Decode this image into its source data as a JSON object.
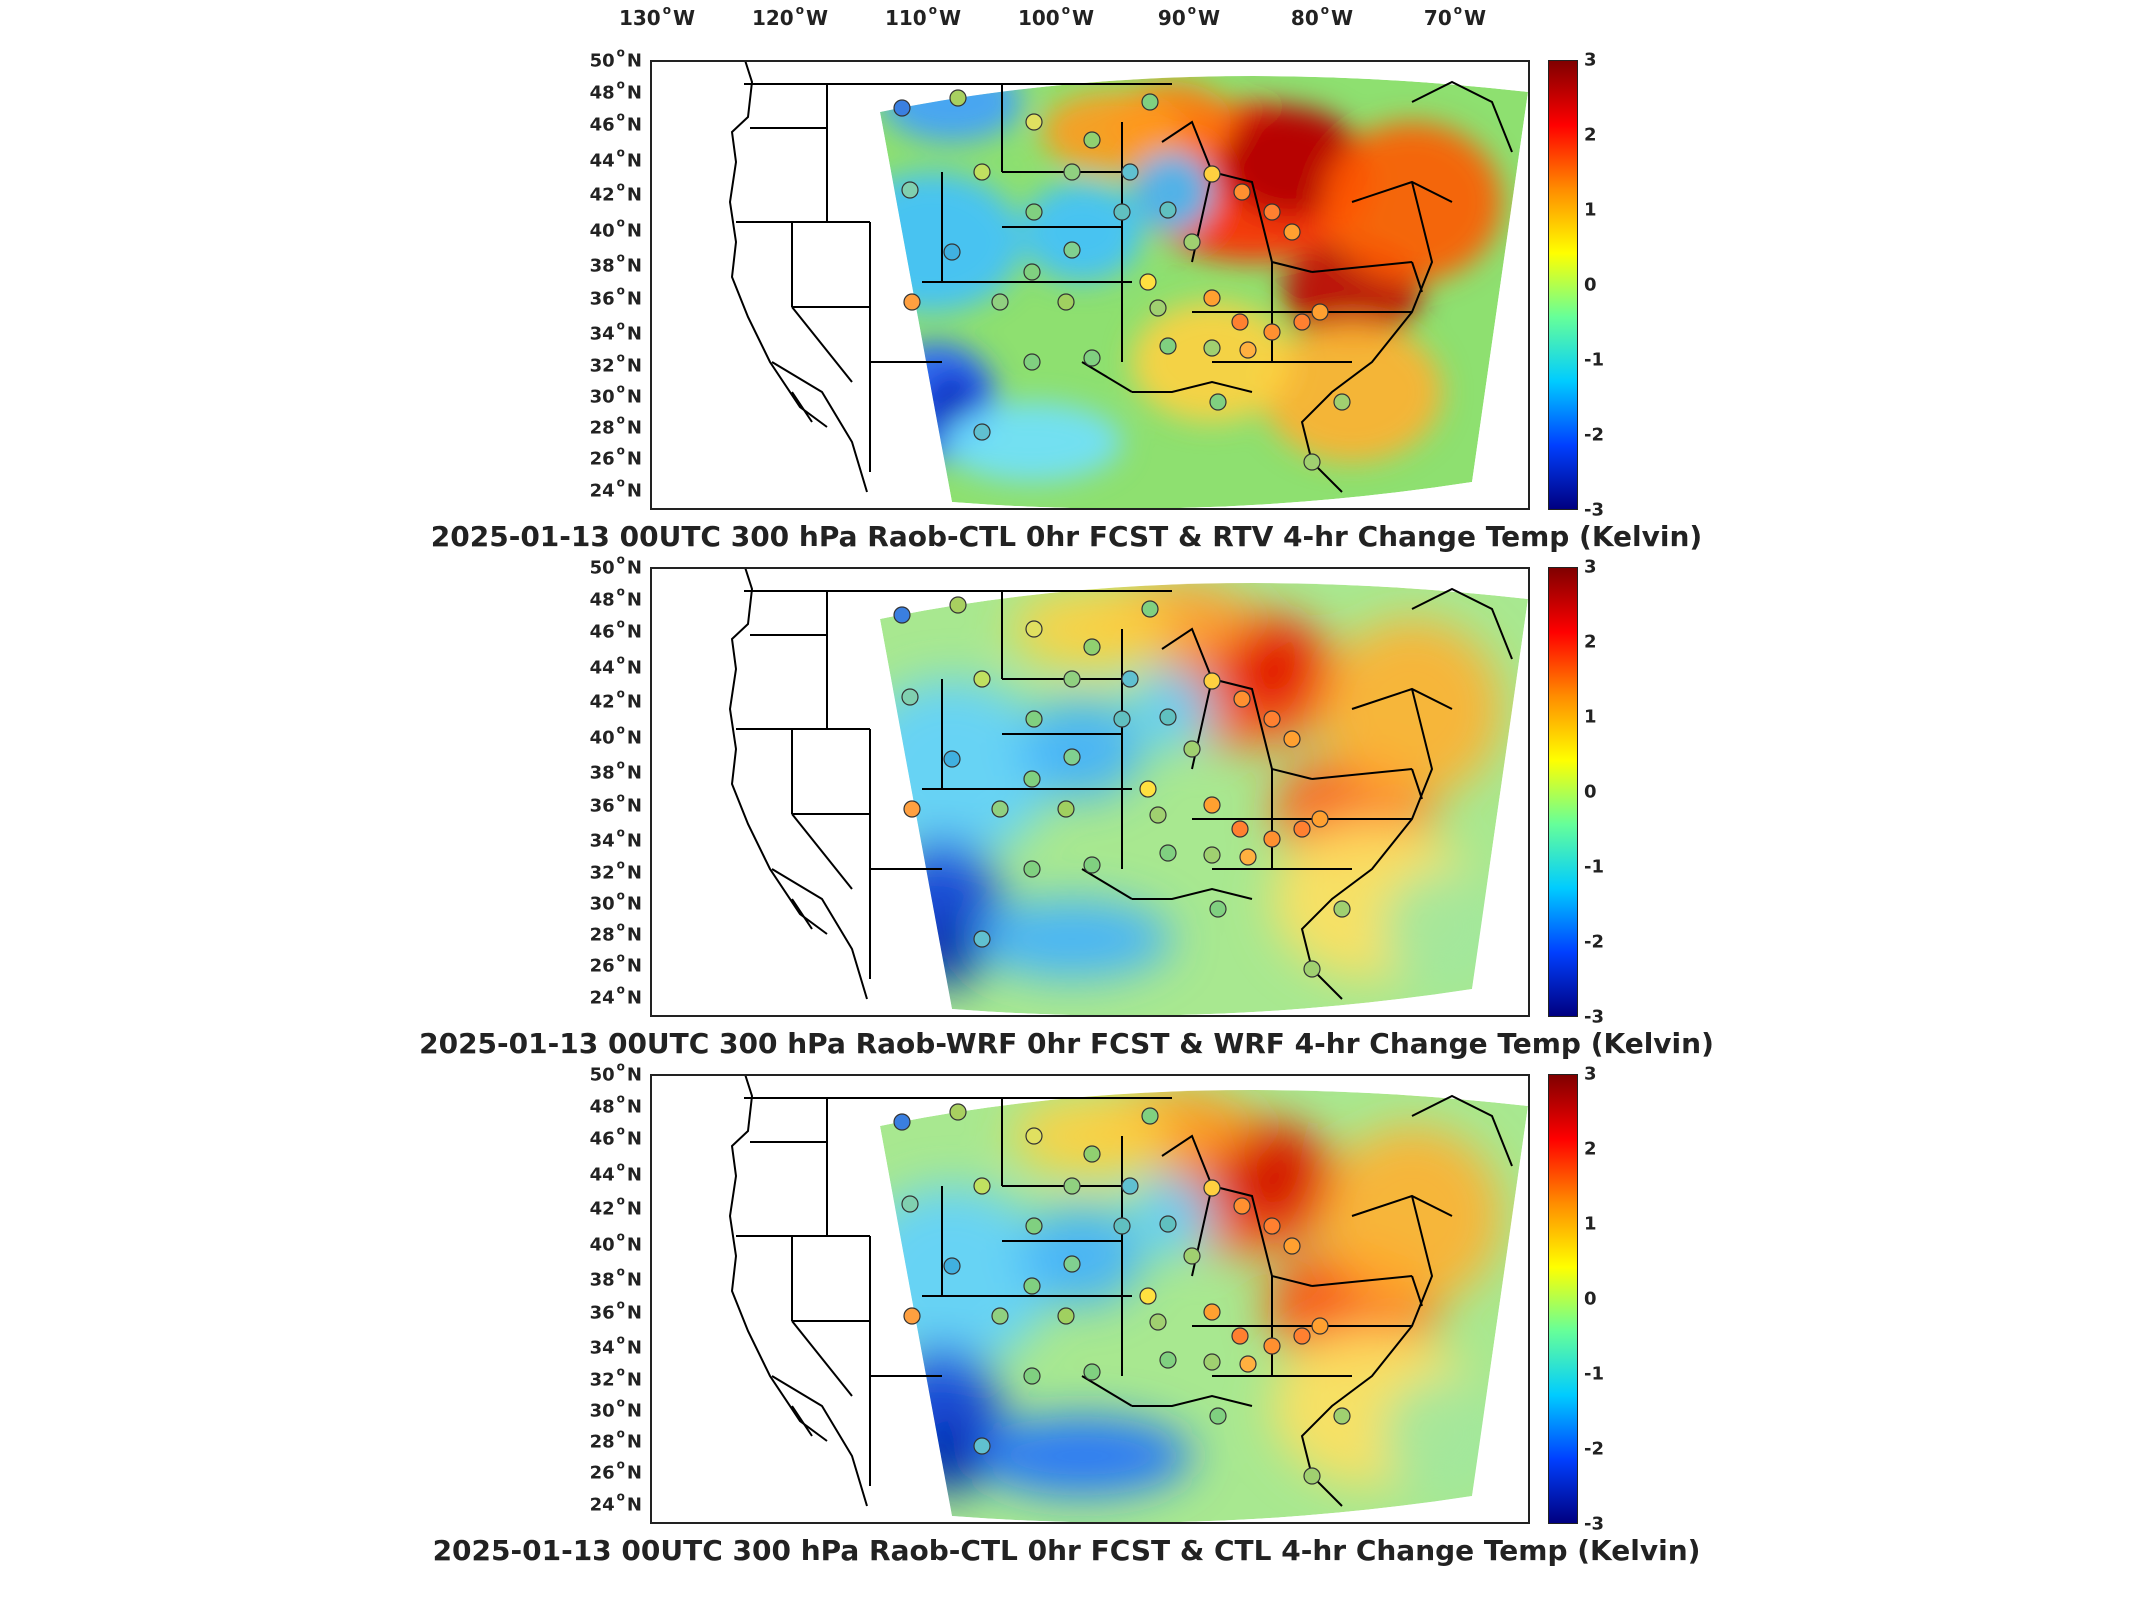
{
  "lon_labels": [
    "130",
    "120",
    "110",
    "100",
    "90",
    "80",
    "70"
  ],
  "lon_suffix": "W",
  "lat_labels": [
    "50",
    "48",
    "46",
    "44",
    "42",
    "40",
    "38",
    "36",
    "34",
    "32",
    "30",
    "28",
    "26",
    "24"
  ],
  "lat_suffix": "N",
  "colorbar": {
    "ticks": [
      "3",
      "2",
      "1",
      "0",
      "-1",
      "-2",
      "-3"
    ],
    "colormap": [
      "#800000",
      "#ff0000",
      "#ff8c00",
      "#ffff00",
      "#66ff99",
      "#00ccff",
      "#0040ff",
      "#000080"
    ]
  },
  "panels": [
    {
      "title": "2025-01-13 00UTC 300 hPa Raob-CTL 0hr FCST & RTV 4-hr Change Temp (Kelvin)",
      "field": "RTV"
    },
    {
      "title": "2025-01-13 00UTC 300 hPa Raob-WRF 0hr FCST & WRF 4-hr Change Temp (Kelvin)",
      "field": "WRF"
    },
    {
      "title": "2025-01-13 00UTC 300 hPa Raob-CTL 0hr FCST & CTL 4-hr Change Temp (Kelvin)",
      "field": "CTL"
    }
  ]
}
